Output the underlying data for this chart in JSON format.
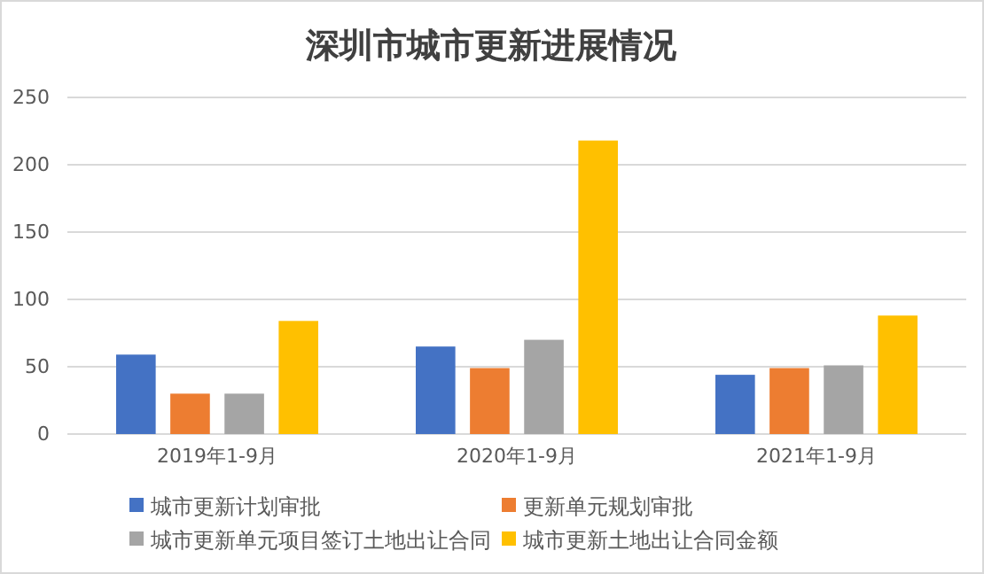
{
  "chart_data": {
    "type": "bar",
    "title": "深圳市城市更新进展情况",
    "categories": [
      "2019年1-9月",
      "2020年1-9月",
      "2021年1-9月"
    ],
    "series": [
      {
        "name": "城市更新计划审批",
        "color": "#4472c4",
        "values": [
          59,
          65,
          44
        ]
      },
      {
        "name": "更新单元规划审批",
        "color": "#ed7d31",
        "values": [
          30,
          49,
          49
        ]
      },
      {
        "name": "城市更新单元项目签订土地出让合同",
        "color": "#a5a5a5",
        "values": [
          30,
          70,
          51
        ]
      },
      {
        "name": "城市更新土地出让合同金额",
        "color": "#ffc000",
        "values": [
          84,
          218,
          88
        ]
      }
    ],
    "ylim": [
      0,
      250
    ],
    "yticks": [
      0,
      50,
      100,
      150,
      200,
      250
    ],
    "grid": "y",
    "legend": "bottom"
  }
}
